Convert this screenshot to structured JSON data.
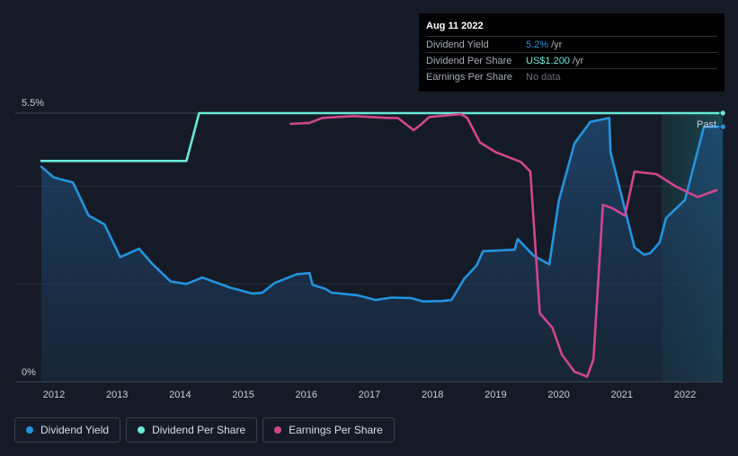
{
  "chart_data": {
    "type": "line",
    "y_axis": {
      "top_label": "5.5%",
      "bottom_label": "0%"
    },
    "x_ticks": [
      "2012",
      "2013",
      "2014",
      "2015",
      "2016",
      "2017",
      "2018",
      "2019",
      "2020",
      "2021",
      "2022"
    ],
    "past_label": "Past",
    "series": [
      {
        "name": "Dividend Yield",
        "color": "#2394df",
        "points": [
          [
            2011.8,
            4.4
          ],
          [
            2012.0,
            4.18
          ],
          [
            2012.3,
            4.08
          ],
          [
            2012.55,
            3.4
          ],
          [
            2012.8,
            3.22
          ],
          [
            2013.05,
            2.55
          ],
          [
            2013.35,
            2.72
          ],
          [
            2013.55,
            2.42
          ],
          [
            2013.85,
            2.05
          ],
          [
            2014.1,
            2.0
          ],
          [
            2014.35,
            2.13
          ],
          [
            2014.8,
            1.92
          ],
          [
            2015.15,
            1.8
          ],
          [
            2015.3,
            1.82
          ],
          [
            2015.5,
            2.02
          ],
          [
            2015.85,
            2.2
          ],
          [
            2016.05,
            2.22
          ],
          [
            2016.1,
            1.98
          ],
          [
            2016.3,
            1.9
          ],
          [
            2016.4,
            1.82
          ],
          [
            2016.8,
            1.77
          ],
          [
            2017.1,
            1.67
          ],
          [
            2017.35,
            1.72
          ],
          [
            2017.65,
            1.71
          ],
          [
            2017.85,
            1.64
          ],
          [
            2018.15,
            1.65
          ],
          [
            2018.3,
            1.67
          ],
          [
            2018.5,
            2.1
          ],
          [
            2018.7,
            2.38
          ],
          [
            2018.8,
            2.67
          ],
          [
            2019.3,
            2.7
          ],
          [
            2019.35,
            2.92
          ],
          [
            2019.6,
            2.58
          ],
          [
            2019.85,
            2.4
          ],
          [
            2020.0,
            3.7
          ],
          [
            2020.25,
            4.88
          ],
          [
            2020.5,
            5.32
          ],
          [
            2020.8,
            5.4
          ],
          [
            2020.82,
            4.7
          ],
          [
            2021.2,
            2.75
          ],
          [
            2021.35,
            2.6
          ],
          [
            2021.45,
            2.63
          ],
          [
            2021.6,
            2.85
          ],
          [
            2021.7,
            3.35
          ],
          [
            2022.0,
            3.72
          ],
          [
            2022.3,
            5.22
          ],
          [
            2022.6,
            5.22
          ]
        ]
      },
      {
        "name": "Dividend Per Share",
        "color": "#68e8d8",
        "points": [
          [
            2011.8,
            4.52
          ],
          [
            2014.1,
            4.52
          ],
          [
            2014.3,
            5.5
          ],
          [
            2022.6,
            5.5
          ]
        ]
      },
      {
        "name": "Earnings Per Share",
        "color": "#d0478d",
        "points": [
          [
            2015.75,
            5.28
          ],
          [
            2016.05,
            5.3
          ],
          [
            2016.25,
            5.4
          ],
          [
            2016.75,
            5.44
          ],
          [
            2017.3,
            5.4
          ],
          [
            2017.45,
            5.4
          ],
          [
            2017.7,
            5.15
          ],
          [
            2017.8,
            5.25
          ],
          [
            2017.95,
            5.42
          ],
          [
            2018.45,
            5.48
          ],
          [
            2018.55,
            5.4
          ],
          [
            2018.75,
            4.9
          ],
          [
            2019.0,
            4.7
          ],
          [
            2019.4,
            4.5
          ],
          [
            2019.55,
            4.3
          ],
          [
            2019.7,
            1.4
          ],
          [
            2019.9,
            1.1
          ],
          [
            2020.05,
            0.55
          ],
          [
            2020.25,
            0.2
          ],
          [
            2020.45,
            0.1
          ],
          [
            2020.55,
            0.45
          ],
          [
            2020.7,
            3.62
          ],
          [
            2020.85,
            3.55
          ],
          [
            2021.05,
            3.4
          ],
          [
            2021.2,
            4.3
          ],
          [
            2021.55,
            4.25
          ],
          [
            2021.85,
            4.0
          ],
          [
            2022.2,
            3.78
          ],
          [
            2022.5,
            3.92
          ]
        ]
      }
    ]
  },
  "tooltip": {
    "date": "Aug 11 2022",
    "rows": [
      {
        "label": "Dividend Yield",
        "value": "5.2%",
        "unit": "/yr",
        "color": "#2394df"
      },
      {
        "label": "Dividend Per Share",
        "value": "US$1.200",
        "unit": "/yr",
        "color": "#68e8d8"
      },
      {
        "label": "Earnings Per Share",
        "value": "No data",
        "unit": "",
        "color": "#6b7079"
      }
    ]
  },
  "legend": [
    {
      "label": "Dividend Yield",
      "color": "#2394df"
    },
    {
      "label": "Dividend Per Share",
      "color": "#68e8d8"
    },
    {
      "label": "Earnings Per Share",
      "color": "#d0478d"
    }
  ]
}
